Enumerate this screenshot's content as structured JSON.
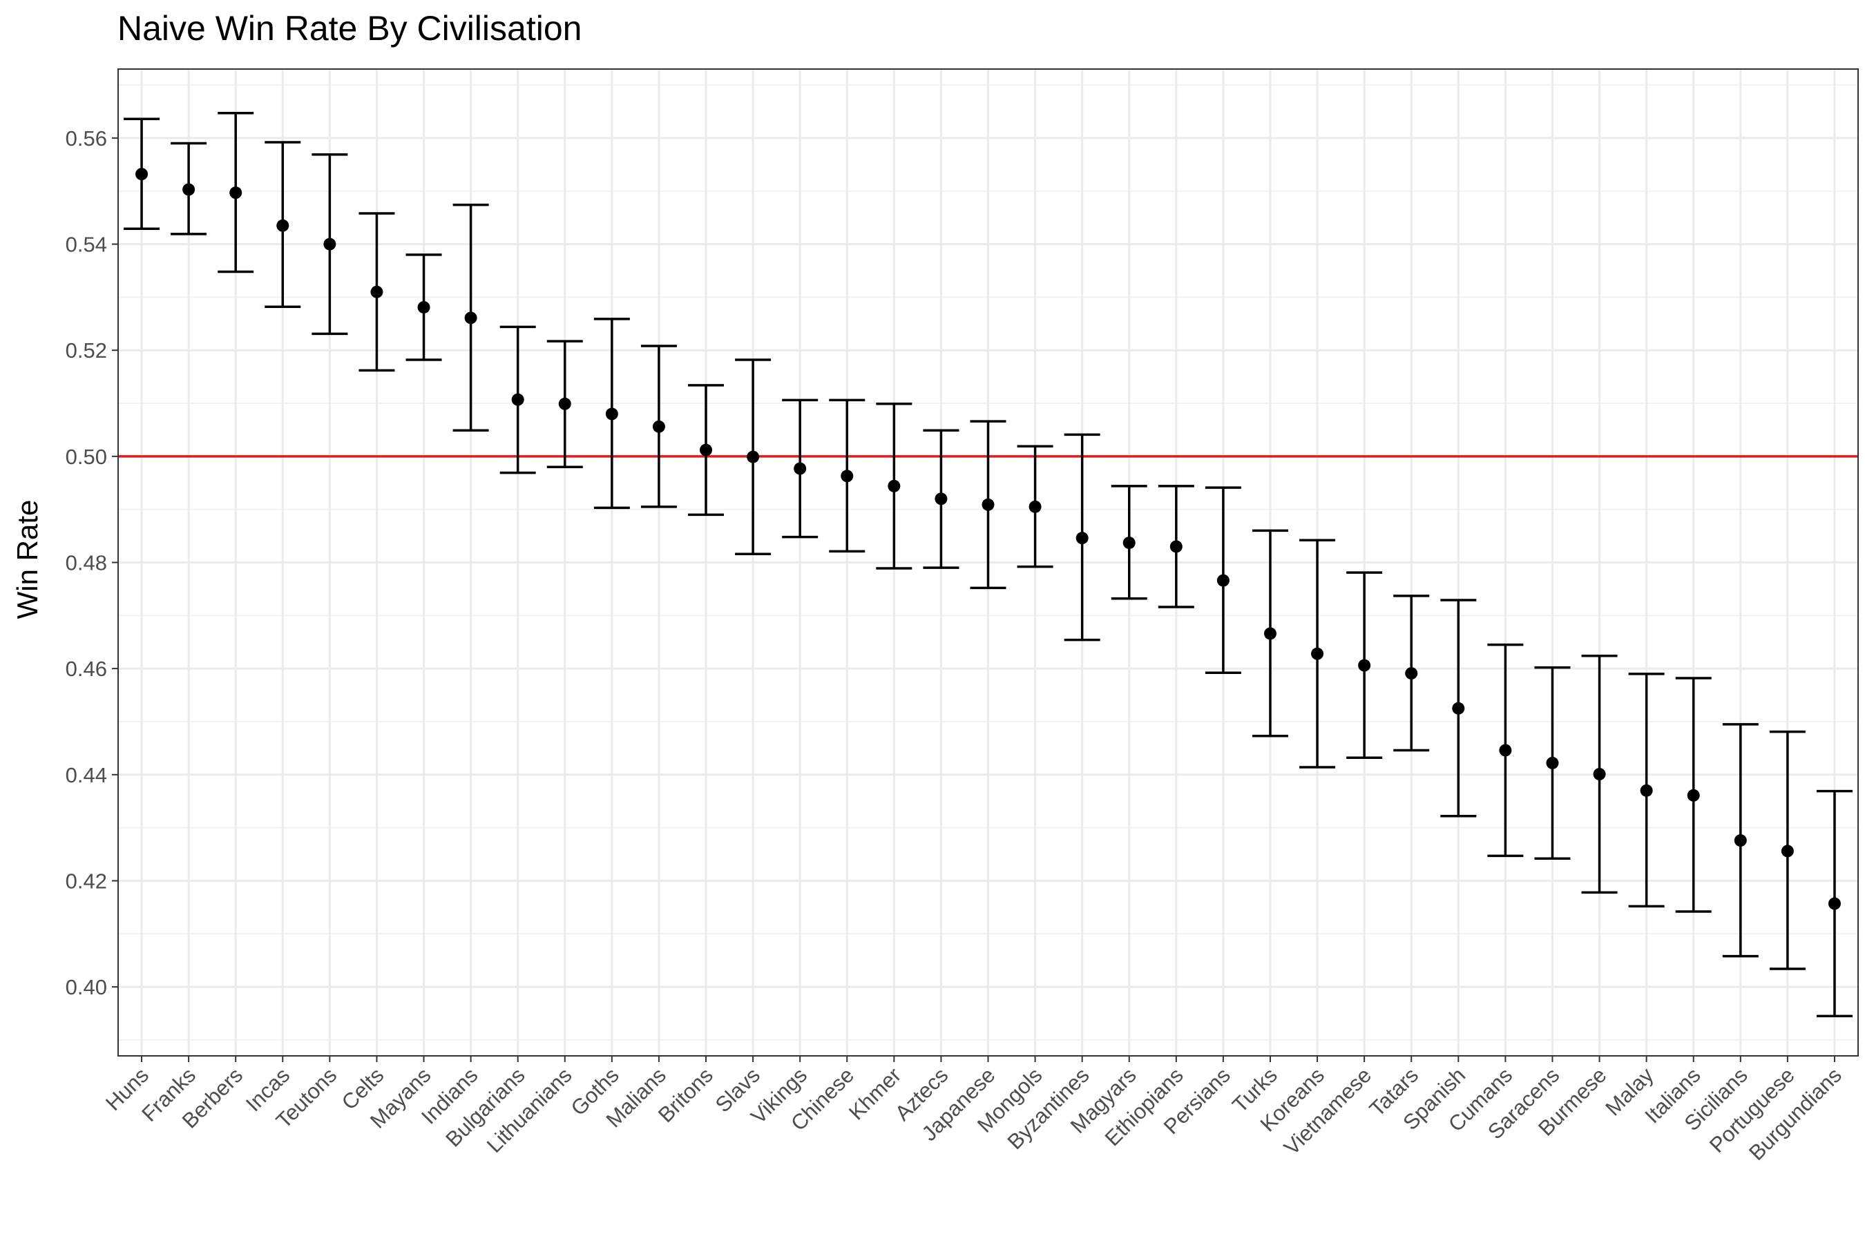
{
  "chart_data": {
    "type": "scatter",
    "title": "Naive Win Rate By Civilisation",
    "xlabel": "",
    "ylabel": "Win Rate",
    "ylim": [
      0.387,
      0.573
    ],
    "yticks": [
      "0.40",
      "0.42",
      "0.44",
      "0.46",
      "0.48",
      "0.50",
      "0.52",
      "0.54",
      "0.56"
    ],
    "reference_line": {
      "y": 0.5,
      "color": "#e41a1c"
    },
    "grid": true,
    "legend": "none",
    "categories": [
      "Huns",
      "Franks",
      "Berbers",
      "Incas",
      "Teutons",
      "Celts",
      "Mayans",
      "Indians",
      "Bulgarians",
      "Lithuanians",
      "Goths",
      "Malians",
      "Britons",
      "Slavs",
      "Vikings",
      "Chinese",
      "Khmer",
      "Aztecs",
      "Japanese",
      "Mongols",
      "Byzantines",
      "Magyars",
      "Ethiopians",
      "Persians",
      "Turks",
      "Koreans",
      "Vietnamese",
      "Tatars",
      "Spanish",
      "Cumans",
      "Saracens",
      "Burmese",
      "Malay",
      "Italians",
      "Sicilians",
      "Portuguese",
      "Burgundians"
    ],
    "series": [
      {
        "values": [
          0.5532,
          0.5503,
          0.5497,
          0.5435,
          0.54,
          0.531,
          0.5281,
          0.5261,
          0.5107,
          0.5099,
          0.508,
          0.5056,
          0.5012,
          0.4999,
          0.4977,
          0.4963,
          0.4944,
          0.492,
          0.4909,
          0.4905,
          0.4846,
          0.4837,
          0.483,
          0.4766,
          0.4666,
          0.4628,
          0.4606,
          0.4591,
          0.4525,
          0.4446,
          0.4422,
          0.4401,
          0.437,
          0.4361,
          0.4276,
          0.4256,
          0.4157
        ],
        "lower": [
          0.5429,
          0.5419,
          0.5348,
          0.5282,
          0.5231,
          0.5162,
          0.5182,
          0.5049,
          0.4969,
          0.498,
          0.4903,
          0.4905,
          0.489,
          0.4816,
          0.4848,
          0.4821,
          0.4789,
          0.479,
          0.4752,
          0.4792,
          0.4654,
          0.4732,
          0.4716,
          0.4592,
          0.4473,
          0.4414,
          0.4432,
          0.4446,
          0.4322,
          0.4247,
          0.4242,
          0.4178,
          0.4152,
          0.4142,
          0.4058,
          0.4034,
          0.3945
        ],
        "upper": [
          0.5636,
          0.559,
          0.5647,
          0.5592,
          0.5569,
          0.5458,
          0.538,
          0.5474,
          0.5244,
          0.5217,
          0.5259,
          0.5208,
          0.5134,
          0.5182,
          0.5106,
          0.5106,
          0.5099,
          0.5049,
          0.5066,
          0.5019,
          0.5041,
          0.4944,
          0.4944,
          0.4941,
          0.486,
          0.4842,
          0.4781,
          0.4737,
          0.4729,
          0.4645,
          0.4602,
          0.4624,
          0.459,
          0.4582,
          0.4495,
          0.4481,
          0.4369
        ]
      }
    ]
  }
}
